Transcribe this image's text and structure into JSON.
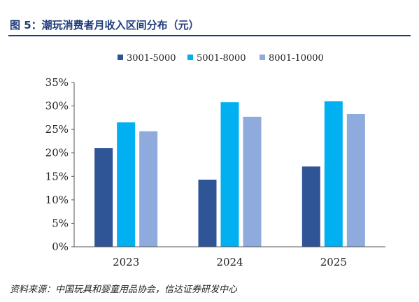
{
  "figure": {
    "title": "图 5：潮玩消费者月收入区间分布（元）",
    "source": "资料来源：中国玩具和婴童用品协会，信达证券研发中心"
  },
  "chart_data": {
    "type": "bar",
    "title": "潮玩消费者月收入区间分布（元）",
    "categories": [
      "2023",
      "2024",
      "2025"
    ],
    "series": [
      {
        "name": "3001-5000",
        "color": "#2f5597",
        "values": [
          21.0,
          14.3,
          17.1
        ]
      },
      {
        "name": "5001-8000",
        "color": "#00b0f0",
        "values": [
          26.5,
          30.8,
          31.0
        ]
      },
      {
        "name": "8001-10000",
        "color": "#8faadc",
        "values": [
          24.6,
          27.7,
          28.3
        ]
      }
    ],
    "ylim": [
      0,
      35
    ],
    "yticks": [
      "0%",
      "5%",
      "10%",
      "15%",
      "20%",
      "25%",
      "30%",
      "35%"
    ],
    "grid": false,
    "legend": "top"
  }
}
